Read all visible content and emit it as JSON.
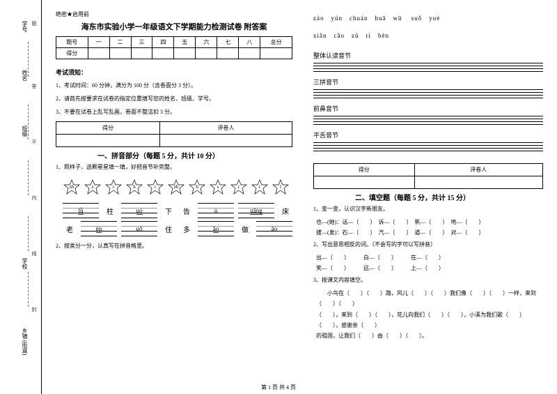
{
  "margin": {
    "labels": [
      "学号",
      "姓名",
      "班级",
      "学校",
      "乡镇 (街道)"
    ],
    "hints": [
      "题",
      "答",
      "不",
      "内",
      "线",
      "封"
    ]
  },
  "secret": "绝密★启用前",
  "title": "海东市实验小学一年级语文下学期能力检测试卷 附答案",
  "score_headers": [
    "题号",
    "一",
    "二",
    "三",
    "四",
    "五",
    "六",
    "七",
    "八",
    "总分"
  ],
  "score_row2": "得分",
  "exam_notice_head": "考试须知：",
  "notices": [
    "1、考试时间：60 分钟，满分为 100 分（含卷面分 3 分）。",
    "2、请首先按要求在试卷的指定位置填写您的姓名、班级、学号。",
    "3、不要在试卷上乱写乱画，卷面不整洁扣 3 分。"
  ],
  "scorer_table": [
    "得分",
    "评卷人"
  ],
  "part1_title": "一、拼音部分（每题 5 分，共计 10 分）",
  "q1_1": "1、照样子，选颗星星填一填，好把音节补完整。",
  "stars": [
    "zh",
    "z",
    "c",
    "h",
    "c",
    "zh",
    "h",
    "s",
    "c",
    "r",
    "l"
  ],
  "pinyin_rows": [
    {
      "items": [
        {
          "txt": "lǜ",
          "red": true
        },
        {
          "lbl": "柱"
        },
        {
          "txt": "uò",
          "red": true
        },
        {
          "lbl": "下"
        },
        {
          "lbl": "告"
        },
        {
          "txt": "ù"
        },
        {
          "txt": "uāng",
          "red": true
        },
        {
          "lbl": "床"
        }
      ]
    },
    {
      "items": [
        {
          "lbl": "老"
        },
        {
          "txt": "én",
          "red": true
        },
        {
          "txt": "uō"
        },
        {
          "lbl": "住"
        },
        {
          "lbl": "多"
        },
        {
          "txt": "ǎo",
          "red": true
        },
        {
          "lbl": "做"
        },
        {
          "txt": "āo",
          "red": false
        }
      ]
    }
  ],
  "q1_2": "2、按类分一分，认真写在拼音格里。",
  "pinyin_list1": "zào　yún　chuán　huā　wū suǒ　yuè",
  "pinyin_list2": "xiǎn　cǎo　zǔ　rì　bēn",
  "categories": [
    "整体认读音节",
    "三拼音节",
    "前鼻音节",
    "平舌音节"
  ],
  "part2_title": "二、填空题（每题 5 分，共计 15 分）",
  "q2_1": "1、变一变，认识汉字新朋友。",
  "q2_1_lines": [
    "也—(她)：话—（　　）　诉—（　　）　帆—（　　）　地—（　　）",
    "拔—(发)：石—（　　）　汽—（　　）　道—（　　）　对—（　　）"
  ],
  "q2_2": "2、写出意思相反的词。（不会写的字可以写拼音）",
  "q2_2_lines": [
    "出—（　　）　　　白—（　　）　　　在—（　　）",
    "笑—（　　）　　　远—（　　）　　　上—（　　）"
  ],
  "q2_3": "3、按课文内容填空。",
  "q2_3_lines": [
    "　　小鸟在（　　）（　　）路，风儿（　　）（　　）我们像（　　）（　　）一样，来到（　　）（　　）",
    "（　　），来到（　　）（　　），花儿向我们（　　）（　　），小溪为我们歌（　　）（　　），感谢亲（　　）",
    "的祖国，让我们（　　）由（　　）（　　）。"
  ],
  "footer": "第 1 页 共 4 页"
}
